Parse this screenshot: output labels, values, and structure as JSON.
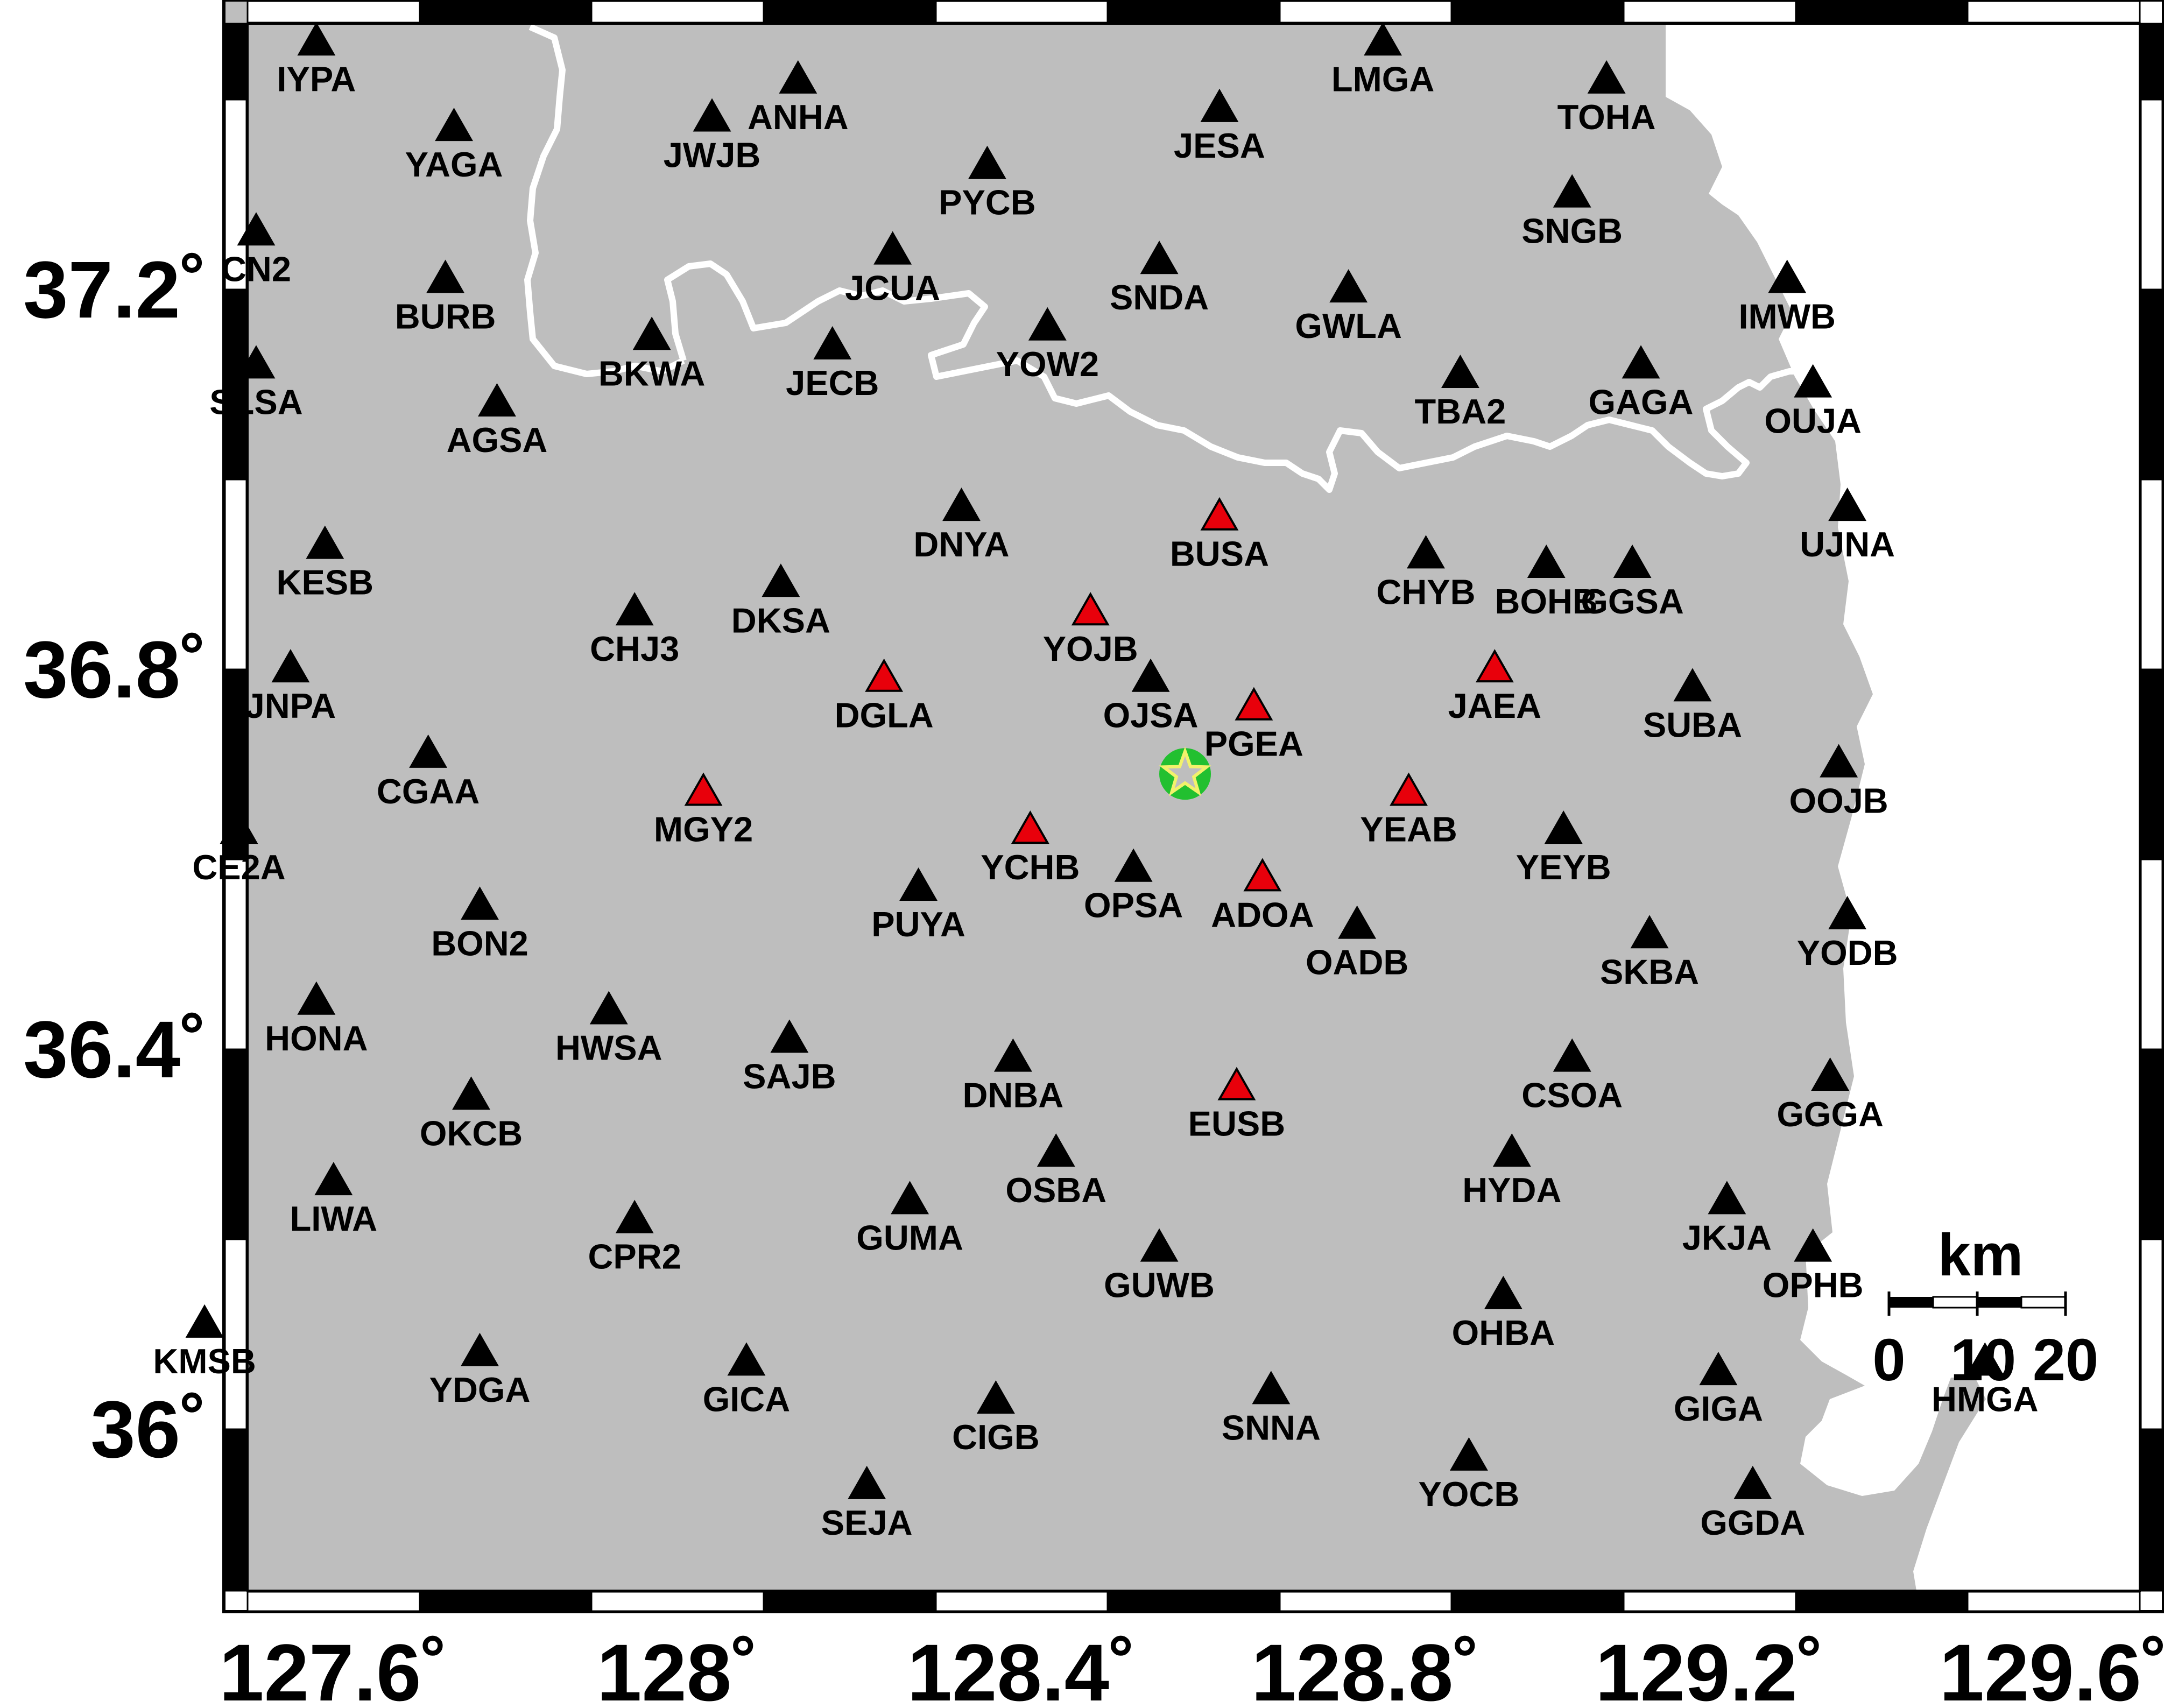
{
  "map": {
    "x_range": [
      127.5,
      129.7
    ],
    "y_range": [
      35.83,
      37.48
    ],
    "land_color": "#bebebe",
    "sea_color": "#ffffff",
    "boundary_color": "#ffffff",
    "station_colors": {
      "triggered": "#e8000b",
      "default": "#000000"
    },
    "epicenter": {
      "lon": 128.59,
      "lat": 36.69,
      "marker": "star-icon",
      "ring_color": "#22c030",
      "star_color": "#f2f26b"
    }
  },
  "axes": {
    "x_ticks": [
      {
        "value": 127.6,
        "label": "127.6˚"
      },
      {
        "value": 128.0,
        "label": "128˚"
      },
      {
        "value": 128.4,
        "label": "128.4˚"
      },
      {
        "value": 128.8,
        "label": "128.8˚"
      },
      {
        "value": 129.2,
        "label": "129.2˚"
      },
      {
        "value": 129.6,
        "label": "129.6˚"
      }
    ],
    "y_ticks": [
      {
        "value": 37.2,
        "label": "37.2˚"
      },
      {
        "value": 36.8,
        "label": "36.8˚"
      },
      {
        "value": 36.4,
        "label": "36.4˚"
      },
      {
        "value": 36.0,
        "label": "36˚"
      }
    ]
  },
  "scale_bar": {
    "unit": "km",
    "labels": [
      "0",
      "10",
      "20"
    ]
  },
  "stations": [
    {
      "code": "IYPA",
      "lon": 127.58,
      "lat": 37.46,
      "red": false
    },
    {
      "code": "ANHA",
      "lon": 128.14,
      "lat": 37.42,
      "red": false
    },
    {
      "code": "LMGA",
      "lon": 128.82,
      "lat": 37.46,
      "red": false
    },
    {
      "code": "TOHA",
      "lon": 129.08,
      "lat": 37.42,
      "red": false
    },
    {
      "code": "YAGA",
      "lon": 127.74,
      "lat": 37.37,
      "red": false
    },
    {
      "code": "JWJB",
      "lon": 128.04,
      "lat": 37.38,
      "red": false
    },
    {
      "code": "JESA",
      "lon": 128.63,
      "lat": 37.39,
      "red": false
    },
    {
      "code": "PYCB",
      "lon": 128.36,
      "lat": 37.33,
      "red": false
    },
    {
      "code": "SNGB",
      "lon": 129.04,
      "lat": 37.3,
      "red": false
    },
    {
      "code": "CN2",
      "lon": 127.51,
      "lat": 37.26,
      "red": false
    },
    {
      "code": "JCUA",
      "lon": 128.25,
      "lat": 37.24,
      "red": false
    },
    {
      "code": "SNDA",
      "lon": 128.56,
      "lat": 37.23,
      "red": false
    },
    {
      "code": "BURB",
      "lon": 127.73,
      "lat": 37.21,
      "red": false
    },
    {
      "code": "GWLA",
      "lon": 128.78,
      "lat": 37.2,
      "red": false
    },
    {
      "code": "IMWB",
      "lon": 129.29,
      "lat": 37.21,
      "red": false
    },
    {
      "code": "BKWA",
      "lon": 127.97,
      "lat": 37.15,
      "red": false
    },
    {
      "code": "JECB",
      "lon": 128.18,
      "lat": 37.14,
      "red": false
    },
    {
      "code": "YOW2",
      "lon": 128.43,
      "lat": 37.16,
      "red": false
    },
    {
      "code": "SLSA",
      "lon": 127.51,
      "lat": 37.12,
      "red": false
    },
    {
      "code": "TBA2",
      "lon": 128.91,
      "lat": 37.11,
      "red": false
    },
    {
      "code": "GAGA",
      "lon": 129.12,
      "lat": 37.12,
      "red": false
    },
    {
      "code": "OUJA",
      "lon": 129.32,
      "lat": 37.1,
      "red": false
    },
    {
      "code": "AGSA",
      "lon": 127.79,
      "lat": 37.08,
      "red": false
    },
    {
      "code": "DNYA",
      "lon": 128.33,
      "lat": 36.97,
      "red": false
    },
    {
      "code": "BUSA",
      "lon": 128.63,
      "lat": 36.96,
      "red": true
    },
    {
      "code": "UJNA",
      "lon": 129.36,
      "lat": 36.97,
      "red": false
    },
    {
      "code": "KESB",
      "lon": 127.59,
      "lat": 36.93,
      "red": false
    },
    {
      "code": "CHYB",
      "lon": 128.87,
      "lat": 36.92,
      "red": false
    },
    {
      "code": "BOHB",
      "lon": 129.01,
      "lat": 36.91,
      "red": false
    },
    {
      "code": "GGSA",
      "lon": 129.11,
      "lat": 36.91,
      "red": false
    },
    {
      "code": "DKSA",
      "lon": 128.12,
      "lat": 36.89,
      "red": false
    },
    {
      "code": "CHJ3",
      "lon": 127.95,
      "lat": 36.86,
      "red": false
    },
    {
      "code": "YOJB",
      "lon": 128.48,
      "lat": 36.86,
      "red": true
    },
    {
      "code": "JNPA",
      "lon": 127.55,
      "lat": 36.8,
      "red": false
    },
    {
      "code": "DGLA",
      "lon": 128.24,
      "lat": 36.79,
      "red": true
    },
    {
      "code": "OJSA",
      "lon": 128.55,
      "lat": 36.79,
      "red": false
    },
    {
      "code": "JAEA",
      "lon": 128.95,
      "lat": 36.8,
      "red": true
    },
    {
      "code": "SUBA",
      "lon": 129.18,
      "lat": 36.78,
      "red": false
    },
    {
      "code": "PGEA",
      "lon": 128.67,
      "lat": 36.76,
      "red": true
    },
    {
      "code": "CGAA",
      "lon": 127.71,
      "lat": 36.71,
      "red": false
    },
    {
      "code": "OOJB",
      "lon": 129.35,
      "lat": 36.7,
      "red": false
    },
    {
      "code": "MGY2",
      "lon": 128.03,
      "lat": 36.67,
      "red": true
    },
    {
      "code": "YEAB",
      "lon": 128.85,
      "lat": 36.67,
      "red": true
    },
    {
      "code": "CE2A",
      "lon": 127.49,
      "lat": 36.63,
      "red": false
    },
    {
      "code": "YCHB",
      "lon": 128.41,
      "lat": 36.63,
      "red": true
    },
    {
      "code": "YEYB",
      "lon": 129.03,
      "lat": 36.63,
      "red": false
    },
    {
      "code": "OPSA",
      "lon": 128.53,
      "lat": 36.59,
      "red": false
    },
    {
      "code": "ADOA",
      "lon": 128.68,
      "lat": 36.58,
      "red": true
    },
    {
      "code": "PUYA",
      "lon": 128.28,
      "lat": 36.57,
      "red": false
    },
    {
      "code": "BON2",
      "lon": 127.77,
      "lat": 36.55,
      "red": false
    },
    {
      "code": "OADB",
      "lon": 128.79,
      "lat": 36.53,
      "red": false
    },
    {
      "code": "SKBA",
      "lon": 129.13,
      "lat": 36.52,
      "red": false
    },
    {
      "code": "YODB",
      "lon": 129.36,
      "lat": 36.54,
      "red": false
    },
    {
      "code": "HONA",
      "lon": 127.58,
      "lat": 36.45,
      "red": false
    },
    {
      "code": "HWSA",
      "lon": 127.92,
      "lat": 36.44,
      "red": false
    },
    {
      "code": "SAJB",
      "lon": 128.13,
      "lat": 36.41,
      "red": false
    },
    {
      "code": "DNBA",
      "lon": 128.39,
      "lat": 36.39,
      "red": false
    },
    {
      "code": "CSOA",
      "lon": 129.04,
      "lat": 36.39,
      "red": false
    },
    {
      "code": "EUSB",
      "lon": 128.65,
      "lat": 36.36,
      "red": true
    },
    {
      "code": "GGGA",
      "lon": 129.34,
      "lat": 36.37,
      "red": false
    },
    {
      "code": "OKCB",
      "lon": 127.76,
      "lat": 36.35,
      "red": false
    },
    {
      "code": "OSBA",
      "lon": 128.44,
      "lat": 36.29,
      "red": false
    },
    {
      "code": "HYDA",
      "lon": 128.97,
      "lat": 36.29,
      "red": false
    },
    {
      "code": "LIWA",
      "lon": 127.6,
      "lat": 36.26,
      "red": false
    },
    {
      "code": "GUMA",
      "lon": 128.27,
      "lat": 36.24,
      "red": false
    },
    {
      "code": "JKJA",
      "lon": 129.22,
      "lat": 36.24,
      "red": false
    },
    {
      "code": "CPR2",
      "lon": 127.95,
      "lat": 36.22,
      "red": false
    },
    {
      "code": "OPHB",
      "lon": 129.32,
      "lat": 36.19,
      "red": false
    },
    {
      "code": "GUWB",
      "lon": 128.56,
      "lat": 36.19,
      "red": false
    },
    {
      "code": "OHBA",
      "lon": 128.96,
      "lat": 36.14,
      "red": false
    },
    {
      "code": "KMSB",
      "lon": 127.45,
      "lat": 36.11,
      "red": false
    },
    {
      "code": "YDGA",
      "lon": 127.77,
      "lat": 36.08,
      "red": false
    },
    {
      "code": "GICA",
      "lon": 128.08,
      "lat": 36.07,
      "red": false
    },
    {
      "code": "HMGA",
      "lon": 129.52,
      "lat": 36.07,
      "red": false
    },
    {
      "code": "GIGA",
      "lon": 129.21,
      "lat": 36.06,
      "red": false
    },
    {
      "code": "CIGB",
      "lon": 128.37,
      "lat": 36.03,
      "red": false
    },
    {
      "code": "SNNA",
      "lon": 128.69,
      "lat": 36.04,
      "red": false
    },
    {
      "code": "YOCB",
      "lon": 128.92,
      "lat": 35.97,
      "red": false
    },
    {
      "code": "SEJA",
      "lon": 128.22,
      "lat": 35.94,
      "red": false
    },
    {
      "code": "GGDA",
      "lon": 129.25,
      "lat": 35.94,
      "red": false
    }
  ]
}
